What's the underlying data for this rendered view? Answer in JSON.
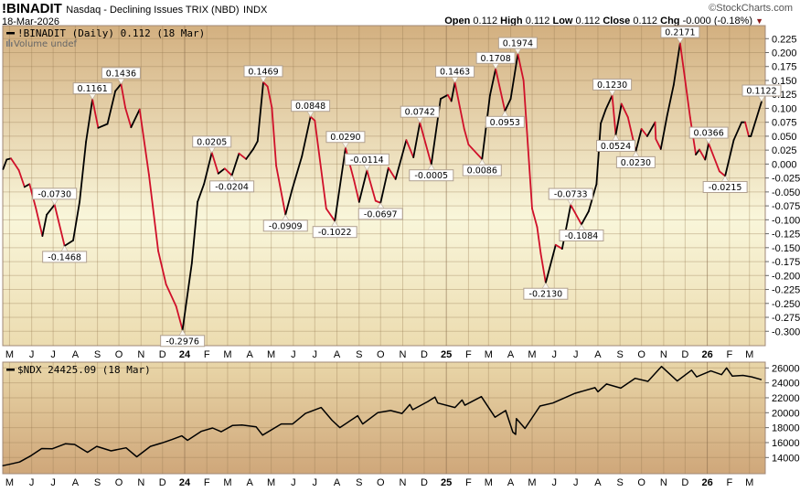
{
  "header": {
    "symbol": "!BINADIT",
    "name": "Nasdaq - Declining Issues TRIX (NBD)",
    "exchange": "INDX",
    "date": "18-Mar-2026",
    "logo": "©StockCharts.com",
    "ohlc": {
      "open_label": "Open",
      "open": "0.112",
      "high_label": "High",
      "high": "0.112",
      "low_label": "Low",
      "low": "0.112",
      "close_label": "Close",
      "close": "0.112",
      "chg_label": "Chg",
      "chg": "-0.000 (-0.18%)",
      "chg_direction": "down"
    }
  },
  "colors": {
    "rising": "#000000",
    "falling": "#d0102a",
    "panel_top": "#d3b080",
    "panel_mid": "#f8f5d8",
    "lower_panel_top": "#e9d6a8",
    "lower_panel_bottom": "#cfa77a"
  },
  "chart_data": [
    {
      "type": "line",
      "legend": "!BINADIT (Daily) 0.112 (18 Mar)",
      "sublegend": "Volume undef",
      "ylim": [
        -0.3,
        0.225
      ],
      "grid": true,
      "y_ticks": [
        "0.225",
        "0.200",
        "0.175",
        "0.150",
        "0.125",
        "0.100",
        "0.075",
        "0.050",
        "0.025",
        "0.000",
        "-0.025",
        "-0.050",
        "-0.075",
        "-0.100",
        "-0.125",
        "-0.150",
        "-0.175",
        "-0.200",
        "-0.225",
        "-0.250",
        "-0.275",
        "-0.300"
      ],
      "x_ticks": [
        "M",
        "J",
        "J",
        "A",
        "S",
        "O",
        "N",
        "D",
        "24",
        "F",
        "M",
        "A",
        "M",
        "J",
        "J",
        "A",
        "S",
        "O",
        "N",
        "D",
        "25",
        "F",
        "M",
        "A",
        "M",
        "J",
        "J",
        "A",
        "S",
        "O",
        "N",
        "D",
        "26",
        "F",
        "M"
      ],
      "series": [
        [
          "2023-04-22",
          -0.009
        ],
        [
          "2023-04-27",
          0.008
        ],
        [
          "2023-05-03",
          0.01
        ],
        [
          "2023-05-14",
          -0.011
        ],
        [
          "2023-05-22",
          -0.041
        ],
        [
          "2023-05-29",
          -0.036
        ],
        [
          "2023-06-07",
          -0.08
        ],
        [
          "2023-06-16",
          -0.129
        ],
        [
          "2023-06-22",
          -0.091
        ],
        [
          "2023-07-03",
          -0.073
        ],
        [
          "2023-07-17",
          -0.1468
        ],
        [
          "2023-07-29",
          -0.137
        ],
        [
          "2023-08-07",
          -0.068
        ],
        [
          "2023-08-16",
          0.04
        ],
        [
          "2023-08-25",
          0.1161
        ],
        [
          "2023-09-02",
          0.065
        ],
        [
          "2023-09-15",
          0.072
        ],
        [
          "2023-09-26",
          0.131
        ],
        [
          "2023-10-04",
          0.1436
        ],
        [
          "2023-10-10",
          0.101
        ],
        [
          "2023-10-18",
          0.066
        ],
        [
          "2023-10-30",
          0.098
        ],
        [
          "2023-11-12",
          -0.019
        ],
        [
          "2023-11-25",
          -0.156
        ],
        [
          "2023-12-06",
          -0.216
        ],
        [
          "2023-12-20",
          -0.255
        ],
        [
          "2023-12-29",
          -0.2976
        ],
        [
          "2024-01-11",
          -0.178
        ],
        [
          "2024-01-19",
          -0.068
        ],
        [
          "2024-01-28",
          -0.036
        ],
        [
          "2024-02-08",
          0.0205
        ],
        [
          "2024-02-17",
          -0.017
        ],
        [
          "2024-02-26",
          -0.008
        ],
        [
          "2024-03-07",
          -0.0204
        ],
        [
          "2024-03-17",
          0.019
        ],
        [
          "2024-03-27",
          0.009
        ],
        [
          "2024-04-06",
          0.027
        ],
        [
          "2024-04-12",
          0.041
        ],
        [
          "2024-04-20",
          0.1469
        ],
        [
          "2024-04-26",
          0.139
        ],
        [
          "2024-05-02",
          0.101
        ],
        [
          "2024-05-08",
          -0.003
        ],
        [
          "2024-05-21",
          -0.0909
        ],
        [
          "2024-05-30",
          -0.047
        ],
        [
          "2024-06-13",
          0.014
        ],
        [
          "2024-06-25",
          0.0848
        ],
        [
          "2024-07-01",
          0.078
        ],
        [
          "2024-07-17",
          -0.08
        ],
        [
          "2024-07-29",
          -0.1022
        ],
        [
          "2024-08-13",
          0.029
        ],
        [
          "2024-08-25",
          -0.03
        ],
        [
          "2024-09-01",
          -0.068
        ],
        [
          "2024-09-12",
          -0.0114
        ],
        [
          "2024-09-24",
          -0.066
        ],
        [
          "2024-10-01",
          -0.0697
        ],
        [
          "2024-10-12",
          -0.007
        ],
        [
          "2024-10-22",
          -0.027
        ],
        [
          "2024-11-06",
          0.043
        ],
        [
          "2024-11-16",
          0.012
        ],
        [
          "2024-11-25",
          0.0742
        ],
        [
          "2024-12-11",
          -0.0005
        ],
        [
          "2024-12-24",
          0.117
        ],
        [
          "2025-01-03",
          0.124
        ],
        [
          "2025-01-08",
          0.113
        ],
        [
          "2025-01-13",
          0.1463
        ],
        [
          "2025-01-26",
          0.063
        ],
        [
          "2025-02-01",
          0.035
        ],
        [
          "2025-02-20",
          0.0086
        ],
        [
          "2025-03-03",
          0.123
        ],
        [
          "2025-03-11",
          0.1708
        ],
        [
          "2025-03-24",
          0.0953
        ],
        [
          "2025-04-01",
          0.117
        ],
        [
          "2025-04-11",
          0.1974
        ],
        [
          "2025-04-19",
          0.15
        ],
        [
          "2025-05-01",
          -0.08
        ],
        [
          "2025-05-08",
          -0.113
        ],
        [
          "2025-05-13",
          -0.16
        ],
        [
          "2025-05-20",
          -0.213
        ],
        [
          "2025-06-03",
          -0.145
        ],
        [
          "2025-06-12",
          -0.152
        ],
        [
          "2025-06-24",
          -0.0733
        ],
        [
          "2025-07-09",
          -0.1084
        ],
        [
          "2025-07-19",
          -0.085
        ],
        [
          "2025-07-30",
          -0.036
        ],
        [
          "2025-08-05",
          0.073
        ],
        [
          "2025-08-12",
          0.098
        ],
        [
          "2025-08-21",
          0.123
        ],
        [
          "2025-08-26",
          0.0524
        ],
        [
          "2025-09-03",
          0.108
        ],
        [
          "2025-09-12",
          0.084
        ],
        [
          "2025-09-23",
          0.023
        ],
        [
          "2025-10-01",
          0.063
        ],
        [
          "2025-10-09",
          0.05
        ],
        [
          "2025-10-20",
          0.075
        ],
        [
          "2025-10-21",
          0.045
        ],
        [
          "2025-10-28",
          0.027
        ],
        [
          "2025-11-06",
          0.088
        ],
        [
          "2025-11-15",
          0.142
        ],
        [
          "2025-11-24",
          0.2171
        ],
        [
          "2025-12-08",
          0.084
        ],
        [
          "2025-12-16",
          0.017
        ],
        [
          "2025-12-21",
          0.026
        ],
        [
          "2025-12-29",
          0.008
        ],
        [
          "2026-01-03",
          0.0366
        ],
        [
          "2026-01-18",
          -0.013
        ],
        [
          "2026-01-26",
          -0.0215
        ],
        [
          "2026-02-07",
          0.043
        ],
        [
          "2026-02-18",
          0.075
        ],
        [
          "2026-02-23",
          0.075
        ],
        [
          "2026-02-28",
          0.05
        ],
        [
          "2026-03-03",
          0.05
        ],
        [
          "2026-03-18",
          0.1122
        ]
      ],
      "annotations": [
        {
          "date": "2023-07-03",
          "value": -0.073,
          "text": "-0.0730",
          "pos": "above"
        },
        {
          "date": "2023-07-17",
          "value": -0.1468,
          "text": "-0.1468",
          "pos": "below"
        },
        {
          "date": "2023-08-25",
          "value": 0.1161,
          "text": "0.1161",
          "pos": "above"
        },
        {
          "date": "2023-10-04",
          "value": 0.1436,
          "text": "0.1436",
          "pos": "above"
        },
        {
          "date": "2023-12-29",
          "value": -0.2976,
          "text": "-0.2976",
          "pos": "below"
        },
        {
          "date": "2024-02-08",
          "value": 0.0205,
          "text": "0.0205",
          "pos": "above"
        },
        {
          "date": "2024-03-07",
          "value": -0.0204,
          "text": "-0.0204",
          "pos": "below"
        },
        {
          "date": "2024-04-20",
          "value": 0.1469,
          "text": "0.1469",
          "pos": "above"
        },
        {
          "date": "2024-05-21",
          "value": -0.0909,
          "text": "-0.0909",
          "pos": "below"
        },
        {
          "date": "2024-06-25",
          "value": 0.0848,
          "text": "0.0848",
          "pos": "above"
        },
        {
          "date": "2024-07-29",
          "value": -0.1022,
          "text": "-0.1022",
          "pos": "below"
        },
        {
          "date": "2024-08-13",
          "value": 0.029,
          "text": "0.0290",
          "pos": "above"
        },
        {
          "date": "2024-09-12",
          "value": -0.0114,
          "text": "-0.0114",
          "pos": "above"
        },
        {
          "date": "2024-10-01",
          "value": -0.0697,
          "text": "-0.0697",
          "pos": "below"
        },
        {
          "date": "2024-11-25",
          "value": 0.0742,
          "text": "0.0742",
          "pos": "above"
        },
        {
          "date": "2024-12-11",
          "value": -0.0005,
          "text": "-0.0005",
          "pos": "below"
        },
        {
          "date": "2025-01-13",
          "value": 0.1463,
          "text": "0.1463",
          "pos": "above"
        },
        {
          "date": "2025-02-20",
          "value": 0.0086,
          "text": "0.0086",
          "pos": "below"
        },
        {
          "date": "2025-03-11",
          "value": 0.1708,
          "text": "0.1708",
          "pos": "above"
        },
        {
          "date": "2025-03-24",
          "value": 0.0953,
          "text": "0.0953",
          "pos": "below"
        },
        {
          "date": "2025-04-11",
          "value": 0.1974,
          "text": "0.1974",
          "pos": "above"
        },
        {
          "date": "2025-05-20",
          "value": -0.213,
          "text": "-0.2130",
          "pos": "below"
        },
        {
          "date": "2025-06-24",
          "value": -0.0733,
          "text": "-0.0733",
          "pos": "above"
        },
        {
          "date": "2025-07-09",
          "value": -0.1084,
          "text": "-0.1084",
          "pos": "below"
        },
        {
          "date": "2025-08-21",
          "value": 0.123,
          "text": "0.1230",
          "pos": "above"
        },
        {
          "date": "2025-08-26",
          "value": 0.0524,
          "text": "0.0524",
          "pos": "below"
        },
        {
          "date": "2025-09-23",
          "value": 0.023,
          "text": "0.0230",
          "pos": "below"
        },
        {
          "date": "2025-11-24",
          "value": 0.2171,
          "text": "0.2171",
          "pos": "above"
        },
        {
          "date": "2026-01-03",
          "value": 0.0366,
          "text": "0.0366",
          "pos": "above"
        },
        {
          "date": "2026-01-26",
          "value": -0.0215,
          "text": "-0.0215",
          "pos": "below"
        },
        {
          "date": "2026-03-18",
          "value": 0.1122,
          "text": "0.1122",
          "pos": "above"
        }
      ]
    },
    {
      "type": "line",
      "legend": "$NDX 24425.09 (18 Mar)",
      "ylim": [
        11900,
        26650
      ],
      "grid": true,
      "y_ticks": [
        "26000",
        "24000",
        "22000",
        "20000",
        "18000",
        "16000",
        "14000"
      ],
      "x_ticks": [
        "M",
        "J",
        "J",
        "A",
        "S",
        "O",
        "N",
        "D",
        "24",
        "F",
        "M",
        "A",
        "M",
        "J",
        "J",
        "A",
        "S",
        "O",
        "N",
        "D",
        "25",
        "F",
        "M",
        "A",
        "M",
        "J",
        "J",
        "A",
        "S",
        "O",
        "N",
        "D",
        "26",
        "F",
        "M"
      ],
      "series": [
        [
          "2023-04-21",
          12900
        ],
        [
          "2023-05-01",
          13100
        ],
        [
          "2023-05-15",
          13400
        ],
        [
          "2023-05-31",
          14250
        ],
        [
          "2023-06-15",
          15200
        ],
        [
          "2023-06-30",
          15180
        ],
        [
          "2023-07-18",
          15840
        ],
        [
          "2023-07-31",
          15750
        ],
        [
          "2023-08-18",
          14700
        ],
        [
          "2023-08-31",
          15500
        ],
        [
          "2023-09-20",
          14900
        ],
        [
          "2023-10-11",
          15300
        ],
        [
          "2023-10-26",
          14100
        ],
        [
          "2023-11-14",
          15500
        ],
        [
          "2023-11-30",
          15950
        ],
        [
          "2023-12-14",
          16400
        ],
        [
          "2023-12-28",
          16900
        ],
        [
          "2024-01-05",
          16300
        ],
        [
          "2024-01-24",
          17500
        ],
        [
          "2024-02-09",
          17950
        ],
        [
          "2024-02-21",
          17450
        ],
        [
          "2024-03-08",
          18300
        ],
        [
          "2024-03-21",
          18350
        ],
        [
          "2024-04-10",
          18100
        ],
        [
          "2024-04-19",
          17000
        ],
        [
          "2024-05-15",
          18500
        ],
        [
          "2024-05-31",
          18500
        ],
        [
          "2024-06-18",
          19900
        ],
        [
          "2024-07-10",
          20700
        ],
        [
          "2024-07-25",
          19000
        ],
        [
          "2024-08-05",
          18000
        ],
        [
          "2024-08-30",
          19600
        ],
        [
          "2024-09-06",
          18500
        ],
        [
          "2024-09-27",
          20000
        ],
        [
          "2024-10-15",
          20300
        ],
        [
          "2024-10-31",
          19900
        ],
        [
          "2024-11-11",
          21100
        ],
        [
          "2024-11-15",
          20400
        ],
        [
          "2024-12-06",
          21500
        ],
        [
          "2024-12-16",
          22100
        ],
        [
          "2024-12-20",
          21300
        ],
        [
          "2025-01-13",
          20700
        ],
        [
          "2025-01-23",
          21700
        ],
        [
          "2025-01-27",
          21000
        ],
        [
          "2025-02-19",
          22150
        ],
        [
          "2025-03-10",
          19400
        ],
        [
          "2025-03-25",
          20300
        ],
        [
          "2025-04-04",
          17400
        ],
        [
          "2025-04-08",
          17100
        ],
        [
          "2025-04-09",
          19200
        ],
        [
          "2025-04-21",
          17900
        ],
        [
          "2025-05-12",
          20900
        ],
        [
          "2025-05-30",
          21300
        ],
        [
          "2025-06-30",
          22600
        ],
        [
          "2025-07-28",
          23350
        ],
        [
          "2025-08-01",
          22800
        ],
        [
          "2025-08-13",
          23850
        ],
        [
          "2025-09-02",
          23300
        ],
        [
          "2025-09-22",
          24600
        ],
        [
          "2025-10-10",
          24200
        ],
        [
          "2025-10-29",
          26200
        ],
        [
          "2025-11-20",
          24250
        ],
        [
          "2025-12-10",
          25700
        ],
        [
          "2025-12-17",
          24800
        ],
        [
          "2026-01-06",
          25600
        ],
        [
          "2026-01-21",
          25100
        ],
        [
          "2026-01-28",
          26000
        ],
        [
          "2026-02-05",
          24900
        ],
        [
          "2026-02-20",
          25000
        ],
        [
          "2026-03-04",
          24800
        ],
        [
          "2026-03-18",
          24425
        ]
      ]
    }
  ]
}
